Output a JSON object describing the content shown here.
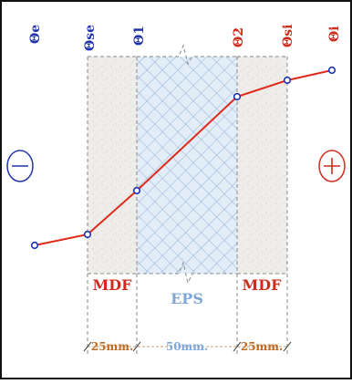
{
  "labels": {
    "theta_e": "Θe",
    "theta_se": "Θse",
    "theta_1": "Θ1",
    "theta_2": "Θ2",
    "theta_si": "Θsi",
    "theta_i": "Θi"
  },
  "side_signs": {
    "left": "−",
    "right": "+"
  },
  "layers": {
    "mdf_left": "MDF",
    "eps": "EPS",
    "mdf_right": "MDF"
  },
  "dimensions": {
    "mdf_left": "25mm.",
    "eps": "50mm.",
    "mdf_right": "25mm."
  },
  "colors": {
    "frame": "#111111",
    "blue": "#2233aa",
    "red": "#cc2b1d",
    "mdf_fill": "#efedea",
    "eps_fill": "#e3edf8",
    "eps_label": "#7ea7d8",
    "temp_line": "#dd2a1a",
    "point": "#1e2fb0"
  }
}
